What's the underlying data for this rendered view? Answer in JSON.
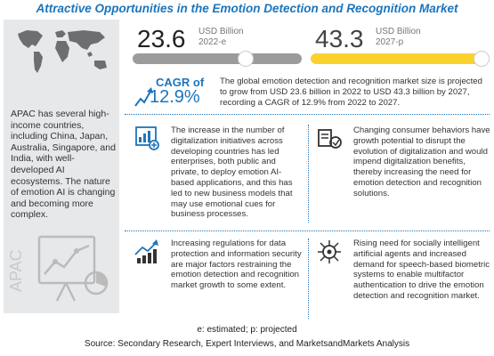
{
  "title": "Attractive Opportunities in the Emotion Detection and Recognition Market",
  "left_panel": {
    "region_text": "APAC has several high-income countries, including China, Japan, Australia, Singapore, and India, with well-developed AI ecosystems. The nature of emotion AI is changing and becoming more complex.",
    "region_label": "APAC"
  },
  "market": {
    "value_2022": "23.6",
    "unit_2022_line1": "USD Billion",
    "unit_2022_line2": "2022-e",
    "value_2027": "43.3",
    "unit_2027_line1": "USD Billion",
    "unit_2027_line2": "2027-p",
    "cagr_label": "CAGR of",
    "cagr_value": "12.9%",
    "summary": "The global emotion detection and recognition market size is projected to grow from USD 23.6 billion in 2022 to USD 43.3 billion by 2027, recording a CAGR of 12.9% from 2022 to 2027."
  },
  "cards": [
    {
      "icon": "digital-transformation-icon",
      "text": "The increase in the number of digitalization initiatives across developing countries has led enterprises, both public and private, to deploy emotion AI-based applications, and this has led to new business models that may use emotional cues for business processes."
    },
    {
      "icon": "changing-behavior-icon",
      "text": "Changing consumer behaviors have growth potential to disrupt the evolution of digitalization and would impend digitalization benefits, thereby increasing the need for emotion detection and recognition solutions."
    },
    {
      "icon": "regulation-chart-icon",
      "text": "Increasing regulations for data protection and information security are major factors restraining the emotion detection and recognition market growth to some extent."
    },
    {
      "icon": "ai-brain-icon",
      "text": "Rising need for socially intelligent artificial agents and increased demand for speech-based biometric systems to enable multifactor authentication to drive the emotion detection and recognition market."
    }
  ],
  "footnote": "e: estimated; p: projected",
  "source": "Source: Secondary Research, Expert Interviews, and MarketsandMarkets Analysis",
  "colors": {
    "accent_blue": "#1c75bc",
    "bar_grey": "#9b9b9b",
    "bar_yellow": "#fbd12e",
    "panel_grey": "#e7e8e9"
  }
}
